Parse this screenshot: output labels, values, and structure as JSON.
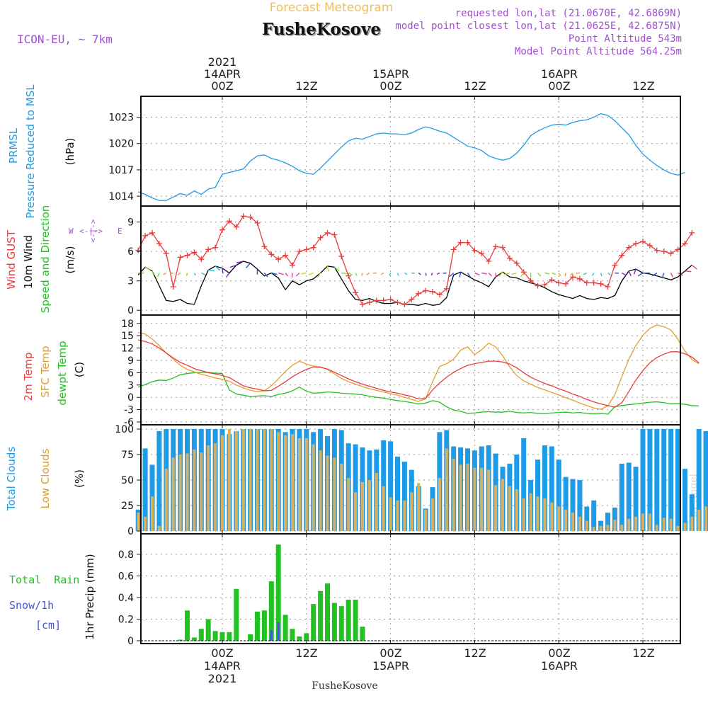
{
  "header": {
    "title": "Forecast Meteogram",
    "location": "FusheKosove",
    "model": "ICON-EU, ~ 7km",
    "requested": "requested lon,lat (21.0670E, 42.6869N)",
    "closest": "model point closest lon,lat (21.0625E, 42.6875N)",
    "altitude": "Point Altitude 543m",
    "model_altitude": "Model Point Altitude 564.25m",
    "footer": "FusheKosove",
    "watermark": "by Angel"
  },
  "time_axis": {
    "year": "2021",
    "ticks": [
      "00Z",
      "12Z",
      "00Z",
      "12Z",
      "00Z",
      "12Z"
    ],
    "dates": [
      "14APR",
      "15APR",
      "16APR"
    ],
    "hour_range": [
      -12,
      64
    ]
  },
  "colors": {
    "pressure": "#1E9BE6",
    "gust": "#E83C3C",
    "wind10m": "#000000",
    "temp2m": "#E83C3C",
    "sfc_temp": "#E0A030",
    "dewpt": "#22C222",
    "total_clouds": "#1E9BE6",
    "low_clouds": "#D8B060",
    "rain": "#22C222",
    "snow": "#4455DD",
    "title": "#F0C060",
    "meta": "#A050D0"
  },
  "panels": {
    "pressure": {
      "label1": "PRMSL",
      "label2": "Pressure Reduced to MSL",
      "unit": "(hPa)",
      "ticks": [
        1014,
        1017,
        1020,
        1023
      ]
    },
    "wind": {
      "label_gust": "Wind GUST",
      "label_10m": "10m Wind",
      "label_dir": "Speed and Direction",
      "unit": "(m/s)",
      "ticks": [
        0,
        3,
        6,
        9
      ],
      "compass_ns": "N S",
      "compass_w": "W",
      "compass_e": "E",
      "compass_arrows": "<-|->"
    },
    "temp": {
      "label1": "2m Temp",
      "label2": "SFC Temp",
      "label3": "dewpt Temp",
      "unit": "(C)",
      "ticks": [
        -6,
        -3,
        0,
        3,
        6,
        9,
        12,
        15,
        18
      ]
    },
    "clouds": {
      "label1": "Total Clouds",
      "label2": "Low Clouds",
      "unit": "(%)",
      "ticks": [
        0,
        25,
        50,
        75,
        100
      ]
    },
    "precip": {
      "label1": "Total  Rain",
      "label2": "Snow/1h",
      "label3": "[cm]",
      "ylabel": "1hr Precip (mm)",
      "ticks": [
        0,
        0.2,
        0.4,
        0.6,
        0.8
      ]
    }
  },
  "chart_data": [
    {
      "type": "line",
      "title": "PRMSL Pressure Reduced to MSL",
      "ylabel": "(hPa)",
      "x_hour_start": -12,
      "x_hour_step": 1,
      "ylim": [
        1013.2,
        1024.9
      ],
      "series": [
        {
          "name": "PRMSL",
          "values": [
            1014.5,
            1014.2,
            1013.8,
            1013.5,
            1013.5,
            1013.9,
            1014.3,
            1014.1,
            1014.6,
            1014.2,
            1014.8,
            1015.0,
            1016.5,
            1016.7,
            1016.9,
            1017.1,
            1018.0,
            1018.6,
            1018.7,
            1018.3,
            1018.1,
            1017.8,
            1017.4,
            1016.9,
            1016.6,
            1016.5,
            1017.2,
            1018.0,
            1018.8,
            1019.6,
            1020.3,
            1020.6,
            1020.5,
            1020.8,
            1021.1,
            1021.2,
            1021.1,
            1021.1,
            1021.0,
            1021.2,
            1021.6,
            1021.9,
            1021.7,
            1021.4,
            1021.2,
            1020.7,
            1020.2,
            1019.7,
            1019.5,
            1019.2,
            1018.6,
            1018.3,
            1018.1,
            1018.3,
            1018.9,
            1019.8,
            1020.9,
            1021.4,
            1021.8,
            1022.1,
            1022.2,
            1022.1,
            1022.4,
            1022.6,
            1022.7,
            1023.0,
            1023.4,
            1023.2,
            1022.6,
            1021.8,
            1021.0,
            1019.8,
            1018.8,
            1018.1,
            1017.5,
            1017.0,
            1016.6,
            1016.4,
            1016.7
          ]
        }
      ]
    },
    {
      "type": "line",
      "title": "Wind GUST / 10m Wind",
      "ylabel": "(m/s)",
      "x_hour_start": -12,
      "x_hour_step": 1,
      "ylim": [
        -0.2,
        10.2
      ],
      "series": [
        {
          "name": "Wind GUST",
          "values": [
            6.1,
            7.6,
            7.9,
            6.8,
            5.8,
            2.4,
            5.4,
            5.6,
            5.9,
            5.2,
            6.2,
            6.4,
            8.2,
            9.1,
            8.5,
            9.6,
            9.5,
            8.9,
            6.5,
            5.7,
            5.2,
            5.6,
            4.6,
            6.0,
            6.2,
            6.4,
            7.4,
            7.9,
            7.7,
            5.5,
            3.5,
            1.8,
            0.6,
            0.8,
            1.0,
            1.0,
            1.1,
            0.8,
            0.6,
            1.1,
            1.7,
            2.0,
            1.9,
            1.6,
            2.2,
            6.2,
            6.9,
            6.9,
            6.1,
            5.8,
            5.0,
            6.5,
            6.4,
            5.3,
            4.8,
            3.9,
            3.0,
            2.5,
            2.6,
            3.1,
            2.8,
            2.7,
            3.4,
            3.2,
            2.8,
            2.8,
            2.7,
            2.4,
            4.6,
            5.6,
            6.4,
            6.8,
            7.0,
            6.6,
            6.1,
            6.0,
            5.8,
            6.2,
            6.8,
            7.9
          ]
        },
        {
          "name": "10m Wind",
          "values": [
            3.6,
            4.4,
            4.0,
            2.5,
            1.0,
            0.9,
            1.1,
            0.7,
            0.6,
            2.5,
            4.1,
            4.5,
            4.3,
            3.8,
            4.6,
            5.0,
            4.8,
            4.2,
            3.5,
            3.8,
            3.3,
            2.1,
            3.0,
            2.6,
            3.0,
            3.2,
            3.8,
            4.5,
            4.4,
            3.2,
            2.0,
            1.1,
            1.0,
            1.2,
            0.9,
            0.7,
            0.7,
            0.8,
            0.6,
            0.6,
            0.5,
            0.7,
            0.5,
            0.6,
            1.3,
            3.6,
            3.9,
            3.5,
            3.1,
            2.8,
            2.4,
            3.4,
            3.9,
            3.4,
            3.3,
            3.0,
            2.8,
            2.6,
            2.3,
            1.9,
            1.6,
            1.4,
            1.2,
            1.5,
            1.2,
            1.1,
            1.3,
            1.2,
            1.5,
            3.0,
            4.0,
            4.2,
            3.8,
            3.7,
            3.5,
            3.3,
            3.1,
            3.4,
            4.0,
            4.6
          ]
        }
      ]
    },
    {
      "type": "line",
      "title": "2m Temp / SFC Temp / dewpt Temp",
      "ylabel": "(C)",
      "x_hour_start": -12,
      "x_hour_step": 1,
      "ylim": [
        -6,
        19
      ],
      "series": [
        {
          "name": "2m Temp",
          "values": [
            14.0,
            13.6,
            13.0,
            12.0,
            10.8,
            9.6,
            8.5,
            7.8,
            7.0,
            6.5,
            6.0,
            5.7,
            5.3,
            4.8,
            3.8,
            2.8,
            2.3,
            2.0,
            1.6,
            1.7,
            2.7,
            3.8,
            5.0,
            6.0,
            6.8,
            7.4,
            7.3,
            6.9,
            6.1,
            5.3,
            4.5,
            3.8,
            3.2,
            2.7,
            2.2,
            1.7,
            1.3,
            1.0,
            0.6,
            0.2,
            -0.4,
            -0.3,
            1.8,
            3.5,
            4.9,
            6.1,
            7.0,
            7.8,
            8.2,
            8.5,
            8.8,
            8.8,
            8.6,
            8.1,
            7.2,
            6.0,
            4.9,
            4.1,
            3.4,
            2.8,
            2.1,
            1.5,
            0.8,
            0.2,
            -0.5,
            -1.1,
            -1.6,
            -2.0,
            -2.4,
            -1.3,
            1.4,
            4.2,
            6.5,
            8.4,
            9.7,
            10.5,
            11.1,
            11.1,
            10.6,
            9.8,
            8.4
          ]
        },
        {
          "name": "SFC Temp",
          "values": [
            15.8,
            15.4,
            14.2,
            12.6,
            10.8,
            9.3,
            7.8,
            6.8,
            6.2,
            5.6,
            5.2,
            4.7,
            4.4,
            3.9,
            3.0,
            2.3,
            1.7,
            1.4,
            1.6,
            2.8,
            4.5,
            6.3,
            7.8,
            8.8,
            8.1,
            7.6,
            7.4,
            6.8,
            5.7,
            4.6,
            3.8,
            3.2,
            2.6,
            2.1,
            1.7,
            1.3,
            0.9,
            0.5,
            0.0,
            -0.5,
            -1.0,
            -0.3,
            3.8,
            7.5,
            8.2,
            9.3,
            11.5,
            12.3,
            10.4,
            11.6,
            13.2,
            12.3,
            10.1,
            7.4,
            5.3,
            4.0,
            3.2,
            2.4,
            1.8,
            1.2,
            0.6,
            -0.1,
            -0.7,
            -1.4,
            -2.0,
            -2.6,
            -2.9,
            -2.1,
            0.6,
            5.0,
            9.3,
            12.6,
            15.1,
            16.8,
            17.6,
            17.2,
            16.4,
            14.1,
            11.3,
            9.2,
            8.2
          ]
        },
        {
          "name": "dewpt Temp",
          "values": [
            2.5,
            3.1,
            3.8,
            4.2,
            4.1,
            4.7,
            5.5,
            5.8,
            6.0,
            6.1,
            6.1,
            5.9,
            5.8,
            1.8,
            0.8,
            0.5,
            0.2,
            0.3,
            0.4,
            0.2,
            0.7,
            1.0,
            1.6,
            2.5,
            1.5,
            1.0,
            1.1,
            1.3,
            1.2,
            1.0,
            0.9,
            0.8,
            0.6,
            0.3,
            0.0,
            -0.2,
            -0.5,
            -0.8,
            -1.0,
            -1.3,
            -1.6,
            -1.4,
            -0.8,
            -1.2,
            -2.3,
            -3.1,
            -3.4,
            -3.9,
            -3.8,
            -3.6,
            -3.5,
            -3.6,
            -3.6,
            -3.4,
            -3.7,
            -3.8,
            -3.7,
            -3.9,
            -4.0,
            -3.8,
            -3.7,
            -3.6,
            -3.8,
            -3.7,
            -3.9,
            -4.0,
            -3.9,
            -4.1,
            -2.3,
            -2.0,
            -1.8,
            -1.6,
            -1.4,
            -1.2,
            -1.1,
            -1.3,
            -1.6,
            -1.5,
            -1.7,
            -2.0,
            -2.1
          ]
        }
      ]
    },
    {
      "type": "bar",
      "title": "Total Clouds / Low Clouds",
      "ylabel": "(%)",
      "x_hour_start": -12,
      "x_hour_step": 1,
      "ylim": [
        0,
        100
      ],
      "series": [
        {
          "name": "Total Clouds",
          "values": [
            21,
            81,
            65,
            98,
            100,
            100,
            100,
            100,
            100,
            100,
            100,
            100,
            100,
            95,
            98,
            100,
            100,
            100,
            100,
            100,
            100,
            97,
            100,
            100,
            100,
            97,
            100,
            93,
            100,
            99,
            86,
            85,
            82,
            79,
            80,
            89,
            88,
            73,
            68,
            60,
            44,
            22,
            43,
            97,
            99,
            83,
            82,
            81,
            79,
            83,
            84,
            76,
            63,
            66,
            75,
            91,
            50,
            70,
            84,
            83,
            70,
            53,
            51,
            50,
            24,
            30,
            10,
            18,
            23,
            66,
            67,
            63,
            100,
            100,
            100,
            100,
            100,
            100,
            61,
            36,
            100,
            98
          ]
        },
        {
          "name": "Low Clouds",
          "values": [
            18,
            14,
            34,
            5,
            61,
            72,
            75,
            76,
            80,
            77,
            84,
            86,
            94,
            100,
            98,
            100,
            100,
            100,
            100,
            100,
            97,
            94,
            95,
            91,
            91,
            85,
            79,
            74,
            72,
            66,
            52,
            38,
            48,
            50,
            57,
            44,
            33,
            30,
            30,
            38,
            47,
            21,
            32,
            52,
            81,
            71,
            65,
            66,
            62,
            62,
            60,
            45,
            51,
            44,
            41,
            32,
            37,
            34,
            32,
            28,
            24,
            21,
            18,
            14,
            10,
            4,
            5,
            6,
            11,
            6,
            12,
            14,
            17,
            17,
            6,
            13,
            12,
            5,
            8,
            14,
            21,
            24
          ]
        }
      ]
    },
    {
      "type": "bar",
      "title": "1hr Precip",
      "ylabel": "1hr Precip (mm)",
      "x_hour_start": -12,
      "x_hour_step": 1,
      "ylim": [
        0,
        0.95
      ],
      "series": [
        {
          "name": "Total Rain",
          "values": [
            0,
            0,
            0,
            0,
            0,
            0,
            0.01,
            0.28,
            0.03,
            0.11,
            0.2,
            0.09,
            0.08,
            0.08,
            0.48,
            0,
            0.06,
            0.27,
            0.28,
            0.55,
            0.89,
            0.24,
            0.11,
            0.04,
            0.07,
            0.34,
            0.46,
            0.53,
            0.35,
            0.32,
            0.38,
            0.38,
            0.13,
            0,
            0,
            0,
            0,
            0,
            0,
            0,
            0,
            0,
            0,
            0,
            0,
            0,
            0,
            0,
            0,
            0,
            0,
            0,
            0,
            0,
            0,
            0,
            0,
            0,
            0,
            0,
            0,
            0,
            0,
            0,
            0,
            0,
            0,
            0,
            0,
            0,
            0,
            0,
            0,
            0,
            0,
            0,
            0,
            0,
            0,
            0,
            0
          ]
        },
        {
          "name": "Snow/1h",
          "values": [
            0,
            0,
            0,
            0,
            0,
            0,
            0,
            0,
            0,
            0,
            0,
            0,
            0,
            0,
            0,
            0,
            0,
            0,
            0,
            0.1,
            0.17,
            0,
            0,
            0,
            0,
            0,
            0,
            0,
            0,
            0,
            0,
            0,
            0,
            0,
            0,
            0,
            0,
            0,
            0,
            0,
            0,
            0,
            0,
            0,
            0,
            0,
            0,
            0,
            0,
            0,
            0,
            0,
            0,
            0,
            0,
            0,
            0,
            0,
            0,
            0,
            0,
            0,
            0,
            0,
            0,
            0,
            0,
            0,
            0,
            0,
            0,
            0,
            0,
            0,
            0,
            0,
            0,
            0,
            0,
            0,
            0
          ]
        }
      ]
    }
  ]
}
